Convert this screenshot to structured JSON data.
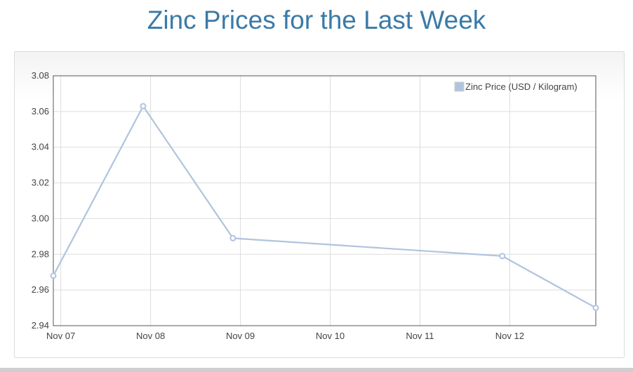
{
  "page": {
    "title": "Zinc Prices for the Last Week"
  },
  "chart_data": {
    "type": "line",
    "title": "Zinc Prices for the Last Week",
    "xlabel": "",
    "ylabel": "",
    "x_tick_labels": [
      "Nov 07",
      "Nov 08",
      "Nov 09",
      "Nov 10",
      "Nov 11",
      "Nov 12"
    ],
    "y_tick_labels": [
      "2.94",
      "2.96",
      "2.98",
      "3.00",
      "3.02",
      "3.04",
      "3.06",
      "3.08"
    ],
    "ylim": [
      2.94,
      3.08
    ],
    "xlim": [
      "2023-11-06T22:00",
      "2023-11-12T23:00"
    ],
    "grid": true,
    "legend_position": "top-right",
    "series": [
      {
        "name": "Zinc Price (USD / Kilogram)",
        "color": "#b0c4de",
        "points": [
          {
            "x": "2023-11-06T22:00",
            "y": 2.968
          },
          {
            "x": "2023-11-07T22:00",
            "y": 3.063
          },
          {
            "x": "2023-11-08T22:00",
            "y": 2.989
          },
          {
            "x": "2023-11-11T22:00",
            "y": 2.979
          },
          {
            "x": "2023-11-12T23:00",
            "y": 2.95
          }
        ]
      }
    ]
  },
  "colors": {
    "title": "#3a7aa8",
    "series": "#b0c4de",
    "grid": "#dddddd",
    "axis": "#555555"
  }
}
